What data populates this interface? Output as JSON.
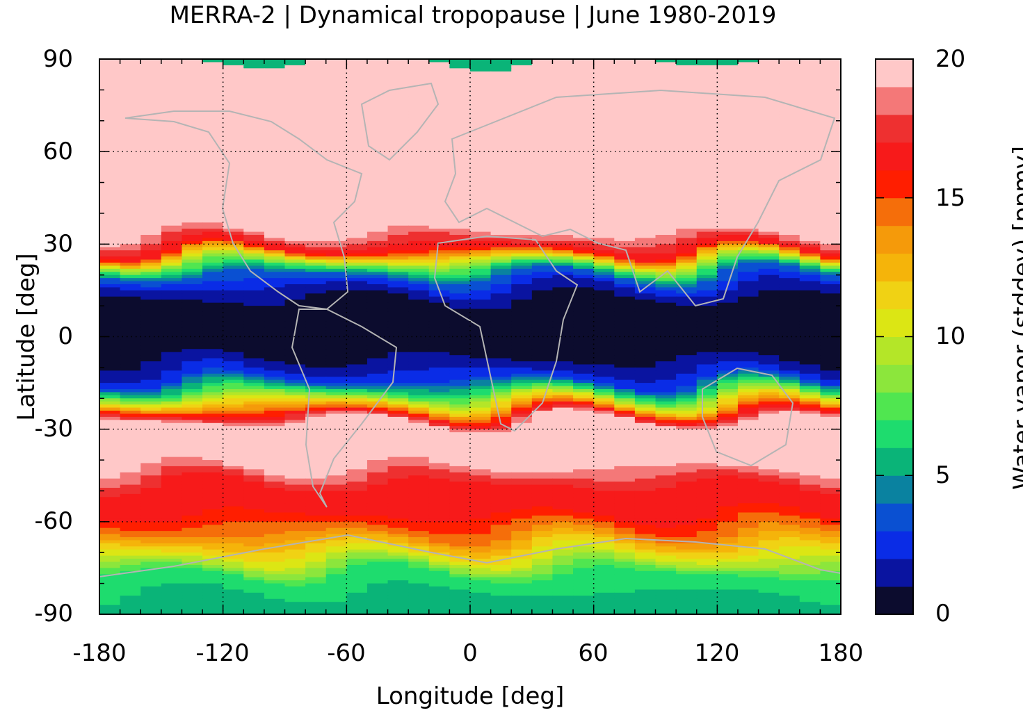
{
  "title": "MERRA-2 | Dynamical tropopause | June 1980-2019",
  "chart_data": {
    "type": "heatmap",
    "xlabel": "Longitude [deg]",
    "ylabel": "Latitude [deg]",
    "colorbar_label": "Water vapor (stddev) [ppmv]",
    "xlim": [
      -180,
      180
    ],
    "ylim": [
      -90,
      90
    ],
    "clim": [
      0,
      20
    ],
    "grid": true,
    "x_ticks": [
      "-180",
      "-120",
      "-60",
      "0",
      "60",
      "120",
      "180"
    ],
    "y_ticks": [
      "90",
      "60",
      "30",
      "0",
      "-30",
      "-60",
      "-90"
    ],
    "colorbar_ticks": [
      "20",
      "15",
      "10",
      "5",
      "0"
    ],
    "colorbar_levels": [
      {
        "from": 0,
        "to": 1,
        "color": "#0c0c2e"
      },
      {
        "from": 1,
        "to": 2,
        "color": "#0a14a0"
      },
      {
        "from": 2,
        "to": 3,
        "color": "#0a2ce6"
      },
      {
        "from": 3,
        "to": 4,
        "color": "#0a50d2"
      },
      {
        "from": 4,
        "to": 5,
        "color": "#0a82a0"
      },
      {
        "from": 5,
        "to": 6,
        "color": "#0ab478"
      },
      {
        "from": 6,
        "to": 7,
        "color": "#1edc6e"
      },
      {
        "from": 7,
        "to": 8,
        "color": "#50e650"
      },
      {
        "from": 8,
        "to": 9,
        "color": "#8ce63c"
      },
      {
        "from": 9,
        "to": 10,
        "color": "#b4e628"
      },
      {
        "from": 10,
        "to": 11,
        "color": "#dce614"
      },
      {
        "from": 11,
        "to": 12,
        "color": "#f0d214"
      },
      {
        "from": 12,
        "to": 13,
        "color": "#f5b40a"
      },
      {
        "from": 13,
        "to": 14,
        "color": "#f59a0a"
      },
      {
        "from": 14,
        "to": 15,
        "color": "#f56e0a"
      },
      {
        "from": 15,
        "to": 16,
        "color": "#ff1e00"
      },
      {
        "from": 16,
        "to": 17,
        "color": "#f71a1a"
      },
      {
        "from": 17,
        "to": 18,
        "color": "#ee3030"
      },
      {
        "from": 18,
        "to": 19,
        "color": "#f47878"
      },
      {
        "from": 19,
        "to": 20,
        "color": "#ffc8c8"
      }
    ],
    "zonal_profile": [
      {
        "lat": 90,
        "value": 20
      },
      {
        "lat": 35,
        "value": 20
      },
      {
        "lat": 28,
        "value": 16
      },
      {
        "lat": 24,
        "value": 9
      },
      {
        "lat": 20,
        "value": 4
      },
      {
        "lat": 15,
        "value": 1.5
      },
      {
        "lat": 10,
        "value": 0.5
      },
      {
        "lat": -5,
        "value": 0.5
      },
      {
        "lat": -10,
        "value": 1.5
      },
      {
        "lat": -14,
        "value": 3
      },
      {
        "lat": -18,
        "value": 7
      },
      {
        "lat": -22,
        "value": 12
      },
      {
        "lat": -25,
        "value": 16
      },
      {
        "lat": -28,
        "value": 20
      },
      {
        "lat": -40,
        "value": 20
      },
      {
        "lat": -48,
        "value": 17
      },
      {
        "lat": -58,
        "value": 16
      },
      {
        "lat": -64,
        "value": 14
      },
      {
        "lat": -68,
        "value": 12
      },
      {
        "lat": -72,
        "value": 10
      },
      {
        "lat": -77,
        "value": 7
      },
      {
        "lat": -83,
        "value": 6
      },
      {
        "lat": -90,
        "value": 5
      }
    ],
    "colors": {
      "coastline": "#b4b4b4",
      "grid": "#000000"
    }
  }
}
